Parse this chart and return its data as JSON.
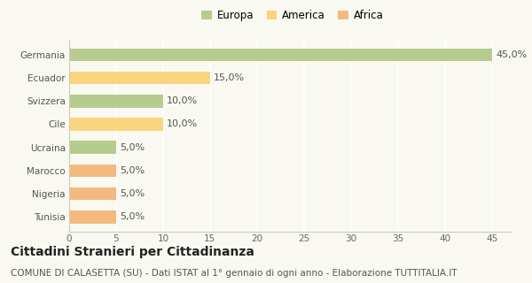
{
  "categories": [
    "Tunisia",
    "Nigeria",
    "Marocco",
    "Ucraina",
    "Cile",
    "Svizzera",
    "Ecuador",
    "Germania"
  ],
  "values": [
    5.0,
    5.0,
    5.0,
    5.0,
    10.0,
    10.0,
    15.0,
    45.0
  ],
  "colors": [
    "#f4b97f",
    "#f4b97f",
    "#f4b97f",
    "#b5cc8e",
    "#f9d580",
    "#b5cc8e",
    "#f9d580",
    "#b5cc8e"
  ],
  "legend": [
    {
      "label": "Europa",
      "color": "#b5cc8e"
    },
    {
      "label": "America",
      "color": "#f9d580"
    },
    {
      "label": "Africa",
      "color": "#f4b97f"
    }
  ],
  "xlim": [
    0,
    47
  ],
  "xticks": [
    0,
    5,
    10,
    15,
    20,
    25,
    30,
    35,
    40,
    45
  ],
  "title": "Cittadini Stranieri per Cittadinanza",
  "subtitle": "COMUNE DI CALASETTA (SU) - Dati ISTAT al 1° gennaio di ogni anno - Elaborazione TUTTITALIA.IT",
  "background_color": "#f9f9f2",
  "grid_color": "#e8e8d8",
  "bar_height": 0.55,
  "title_fontsize": 10,
  "subtitle_fontsize": 7.5,
  "label_fontsize": 8,
  "tick_fontsize": 7.5
}
